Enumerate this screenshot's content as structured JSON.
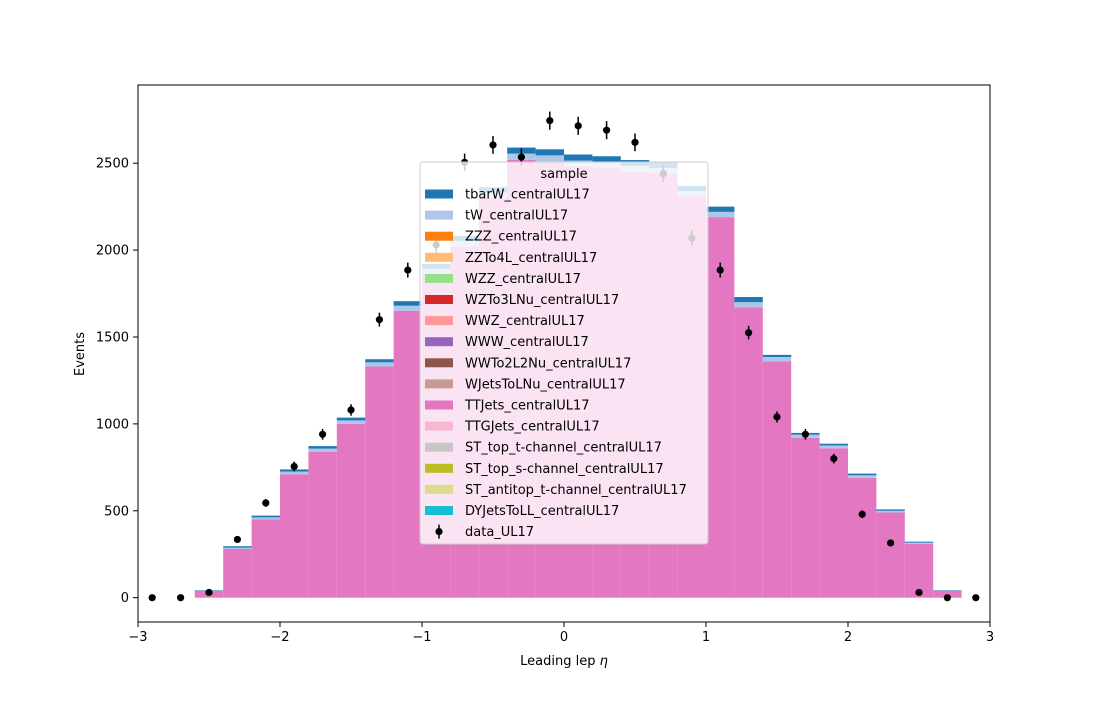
{
  "chart_data": {
    "type": "bar",
    "stacked": true,
    "histogram": true,
    "title": "",
    "xlabel": "Leading lep",
    "xlabel_symbol": "η",
    "ylabel": "Events",
    "xlim": [
      -3,
      3
    ],
    "ylim": [
      -140,
      2950
    ],
    "xticks": [
      -3,
      -2,
      -1,
      0,
      1,
      2,
      3
    ],
    "xtick_labels": [
      "−3",
      "−2",
      "−1",
      "0",
      "1",
      "2",
      "3"
    ],
    "yticks": [
      0,
      500,
      1000,
      1500,
      2000,
      2500
    ],
    "ytick_labels": [
      "0",
      "500",
      "1000",
      "1500",
      "2000",
      "2500"
    ],
    "grid": false,
    "legend": {
      "title": "sample",
      "placement": "center"
    },
    "bin_edges": [
      -3.0,
      -2.8,
      -2.6,
      -2.4,
      -2.2,
      -2.0,
      -1.8,
      -1.6,
      -1.4,
      -1.2,
      -1.0,
      -0.8,
      -0.6,
      -0.4,
      -0.2,
      0.0,
      0.2,
      0.4,
      0.6,
      0.8,
      1.0,
      1.2,
      1.4,
      1.6,
      1.8,
      2.0,
      2.2,
      2.4,
      2.6,
      2.8,
      3.0
    ],
    "series": [
      {
        "name": "DYJetsToLL_centralUL17",
        "color": "#17becf",
        "values": [
          0,
          0,
          0,
          0,
          0,
          0,
          0,
          0,
          0,
          0,
          0,
          0,
          0,
          0,
          0,
          0,
          0,
          0,
          0,
          0,
          0,
          0,
          0,
          0,
          0,
          0,
          0,
          0,
          0,
          0
        ]
      },
      {
        "name": "ST_antitop_t-channel_centralUL17",
        "color": "#dbdb8d",
        "values": [
          0,
          0,
          0,
          0,
          0,
          0,
          0,
          0,
          0,
          0,
          0,
          0,
          0,
          0,
          0,
          0,
          0,
          0,
          0,
          0,
          0,
          0,
          0,
          0,
          0,
          0,
          0,
          0,
          0,
          0
        ]
      },
      {
        "name": "ST_top_s-channel_centralUL17",
        "color": "#bcbd22",
        "values": [
          0,
          0,
          0,
          0,
          0,
          0,
          0,
          0,
          0,
          0,
          0,
          0,
          0,
          0,
          0,
          0,
          0,
          0,
          0,
          0,
          0,
          0,
          0,
          0,
          0,
          0,
          0,
          0,
          0,
          0
        ]
      },
      {
        "name": "ST_top_t-channel_centralUL17",
        "color": "#c7c7c7",
        "values": [
          0,
          0,
          0,
          0,
          0,
          0,
          0,
          0,
          0,
          0,
          0,
          0,
          0,
          0,
          0,
          0,
          0,
          0,
          0,
          0,
          0,
          0,
          0,
          0,
          0,
          0,
          0,
          0,
          0,
          0
        ]
      },
      {
        "name": "TTGJets_centralUL17",
        "color": "#f7b6d2",
        "values": [
          0,
          0,
          0,
          0,
          0,
          0,
          0,
          0,
          0,
          0,
          0,
          0,
          0,
          0,
          0,
          0,
          0,
          0,
          0,
          0,
          0,
          0,
          0,
          0,
          0,
          0,
          0,
          0,
          0,
          0
        ]
      },
      {
        "name": "TTJets_centralUL17",
        "color": "#e377c2",
        "values": [
          0,
          0,
          40,
          280,
          450,
          710,
          840,
          1000,
          1330,
          1650,
          1860,
          2020,
          2300,
          2520,
          2510,
          2480,
          2470,
          2450,
          2440,
          2310,
          2190,
          1670,
          1360,
          920,
          860,
          690,
          490,
          310,
          40,
          0
        ]
      },
      {
        "name": "WJetsToLNu_centralUL17",
        "color": "#c49c94",
        "values": [
          0,
          0,
          0,
          0,
          0,
          0,
          0,
          0,
          0,
          0,
          0,
          0,
          0,
          0,
          0,
          0,
          0,
          0,
          0,
          0,
          0,
          0,
          0,
          0,
          0,
          0,
          0,
          0,
          0,
          0
        ]
      },
      {
        "name": "WWTo2L2Nu_centralUL17",
        "color": "#8c564b",
        "values": [
          0,
          0,
          0,
          0,
          0,
          0,
          0,
          0,
          0,
          0,
          0,
          0,
          0,
          0,
          0,
          0,
          0,
          0,
          0,
          0,
          0,
          0,
          0,
          0,
          0,
          0,
          0,
          0,
          0,
          0
        ]
      },
      {
        "name": "WWW_centralUL17",
        "color": "#9467bd",
        "values": [
          0,
          0,
          0,
          0,
          0,
          0,
          0,
          0,
          0,
          0,
          0,
          0,
          0,
          0,
          0,
          0,
          0,
          0,
          0,
          0,
          0,
          0,
          0,
          0,
          0,
          0,
          0,
          0,
          0,
          0
        ]
      },
      {
        "name": "WWZ_centralUL17",
        "color": "#ff9896",
        "values": [
          0,
          0,
          0,
          0,
          0,
          0,
          0,
          0,
          0,
          0,
          0,
          0,
          0,
          0,
          0,
          0,
          0,
          0,
          0,
          0,
          0,
          0,
          0,
          0,
          0,
          0,
          0,
          0,
          0,
          0
        ]
      },
      {
        "name": "WZTo3LNu_centralUL17",
        "color": "#d62728",
        "values": [
          0,
          0,
          0,
          0,
          0,
          0,
          0,
          0,
          0,
          0,
          0,
          0,
          0,
          0,
          0,
          0,
          0,
          0,
          0,
          0,
          0,
          0,
          0,
          0,
          0,
          0,
          0,
          0,
          0,
          0
        ]
      },
      {
        "name": "WZZ_centralUL17",
        "color": "#98df8a",
        "values": [
          0,
          0,
          0,
          0,
          0,
          0,
          0,
          0,
          0,
          0,
          0,
          0,
          0,
          0,
          0,
          0,
          0,
          0,
          0,
          0,
          0,
          0,
          0,
          0,
          0,
          0,
          0,
          0,
          0,
          0
        ]
      },
      {
        "name": "ZZTo4L_centralUL17",
        "color": "#ffbb78",
        "values": [
          0,
          0,
          0,
          0,
          0,
          0,
          0,
          0,
          0,
          0,
          0,
          0,
          0,
          0,
          0,
          0,
          0,
          0,
          0,
          0,
          0,
          0,
          0,
          0,
          0,
          0,
          0,
          0,
          0,
          0
        ]
      },
      {
        "name": "ZZZ_centralUL17",
        "color": "#ff7f0e",
        "values": [
          0,
          0,
          0,
          0,
          0,
          0,
          0,
          0,
          0,
          0,
          0,
          0,
          0,
          0,
          0,
          0,
          0,
          0,
          0,
          0,
          0,
          0,
          0,
          0,
          0,
          0,
          0,
          0,
          0,
          0
        ]
      },
      {
        "name": "tW_centralUL17",
        "color": "#aec7e8",
        "values": [
          0,
          0,
          2,
          8,
          12,
          16,
          18,
          20,
          24,
          30,
          32,
          32,
          32,
          35,
          35,
          35,
          35,
          34,
          32,
          30,
          30,
          30,
          25,
          18,
          16,
          14,
          10,
          6,
          2,
          0
        ]
      },
      {
        "name": "tbarW_centralUL17",
        "color": "#1f77b4",
        "values": [
          0,
          0,
          2,
          8,
          10,
          12,
          14,
          16,
          18,
          26,
          28,
          30,
          30,
          35,
          35,
          35,
          35,
          34,
          32,
          30,
          30,
          30,
          12,
          10,
          10,
          10,
          8,
          6,
          2,
          0
        ]
      }
    ],
    "data_series": {
      "name": "data_UL17",
      "color": "#000000",
      "x": [
        -2.9,
        -2.7,
        -2.5,
        -2.3,
        -2.1,
        -1.9,
        -1.7,
        -1.5,
        -1.3,
        -1.1,
        -0.9,
        -0.7,
        -0.5,
        -0.3,
        -0.1,
        0.1,
        0.3,
        0.5,
        0.7,
        0.9,
        1.1,
        1.3,
        1.5,
        1.7,
        1.9,
        2.1,
        2.3,
        2.5,
        2.7,
        2.9
      ],
      "y": [
        0,
        0,
        30,
        335,
        545,
        755,
        940,
        1080,
        1600,
        1885,
        2030,
        2505,
        2605,
        2535,
        2745,
        2715,
        2690,
        2620,
        2440,
        2070,
        1885,
        1525,
        1040,
        940,
        800,
        480,
        315,
        30,
        0,
        0
      ],
      "yerr": [
        0,
        0,
        6,
        18,
        23,
        28,
        31,
        33,
        40,
        43,
        45,
        50,
        51,
        50,
        52,
        52,
        52,
        51,
        49,
        45,
        43,
        39,
        32,
        31,
        28,
        22,
        18,
        6,
        0,
        0
      ]
    }
  }
}
